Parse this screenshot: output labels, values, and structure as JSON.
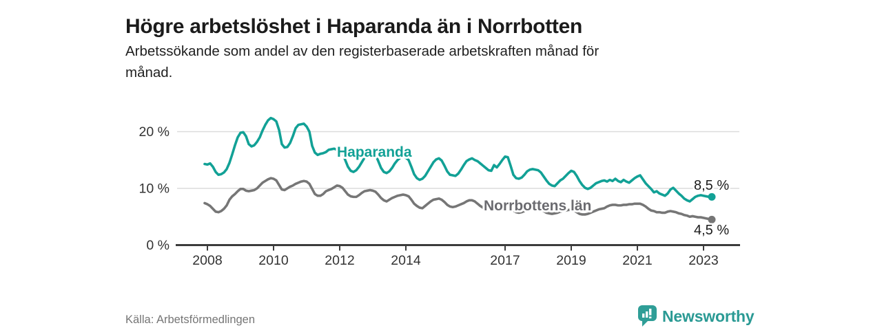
{
  "header": {
    "title": "Högre arbetslöshet i Haparanda än i Norrbotten",
    "subtitle_line1": "Arbetssökande som andel av den registerbaserade arbetskraften månad för",
    "subtitle_line2": "månad."
  },
  "footer": {
    "source": "Källa: Arbetsförmedlingen",
    "brand": "Newsworthy",
    "brand_color": "#2a9a94"
  },
  "colors": {
    "haparanda": "#12a196",
    "norrbotten": "#767676",
    "axis": "#3b3b3b",
    "grid": "#dcdcdc",
    "tick_label": "#333333"
  },
  "chart_data": {
    "type": "line",
    "title": "Högre arbetslöshet i Haparanda än i Norrbotten",
    "subtitle": "Arbetssökande som andel av den registerbaserade arbetskraften månad för månad.",
    "x_unit": "month",
    "x_start": "2008-01",
    "x_end": "2023-05",
    "grid": "horizontal",
    "ylim": [
      0,
      24
    ],
    "x_ticks": [
      2008,
      2010,
      2012,
      2014,
      2017,
      2019,
      2021,
      2023
    ],
    "y_ticks": [
      {
        "value": 0,
        "label": "0 %"
      },
      {
        "value": 10,
        "label": "10 %"
      },
      {
        "value": 20,
        "label": "20 %"
      }
    ],
    "series": [
      {
        "name": "Haparanda",
        "color": "#12a196",
        "end_label": "8,5 %",
        "end_value": 8.5,
        "values": [
          14.3,
          14.2,
          14.4,
          13.8,
          12.9,
          12.4,
          12.5,
          12.8,
          13.4,
          14.5,
          16.0,
          17.6,
          19.0,
          19.8,
          19.9,
          19.2,
          17.8,
          17.4,
          17.6,
          18.2,
          19.0,
          20.2,
          21.2,
          22.0,
          22.4,
          22.2,
          21.8,
          20.3,
          17.8,
          17.2,
          17.3,
          18.0,
          19.2,
          20.6,
          21.2,
          21.3,
          21.4,
          20.9,
          20.0,
          17.5,
          16.3,
          15.9,
          16.1,
          16.2,
          16.4,
          16.8,
          16.9,
          17.0,
          16.8,
          16.6,
          16.2,
          15.0,
          13.8,
          13.1,
          12.9,
          13.2,
          13.8,
          14.6,
          15.4,
          16.0,
          16.4,
          16.3,
          15.9,
          14.8,
          13.6,
          12.9,
          12.7,
          13.0,
          13.6,
          14.4,
          15.0,
          15.4,
          15.6,
          15.4,
          15.0,
          13.8,
          12.5,
          11.8,
          11.5,
          11.7,
          12.2,
          13.0,
          13.8,
          14.6,
          15.1,
          15.3,
          14.9,
          14.0,
          13.0,
          12.4,
          12.3,
          12.2,
          12.6,
          13.3,
          14.1,
          14.8,
          15.1,
          15.3,
          15.0,
          14.8,
          14.4,
          14.0,
          13.6,
          13.2,
          13.1,
          14.1,
          13.7,
          14.3,
          15.0,
          15.6,
          15.5,
          14.0,
          12.4,
          11.8,
          11.7,
          11.9,
          12.4,
          13.0,
          13.3,
          13.4,
          13.3,
          13.2,
          12.8,
          12.1,
          11.4,
          10.8,
          10.5,
          10.4,
          10.9,
          11.4,
          11.7,
          12.2,
          12.7,
          13.1,
          12.9,
          12.2,
          11.3,
          10.6,
          10.1,
          9.9,
          10.1,
          10.5,
          10.9,
          11.1,
          11.3,
          11.4,
          11.2,
          11.5,
          11.3,
          11.7,
          11.3,
          11.1,
          11.5,
          11.2,
          11.0,
          11.4,
          11.8,
          12.1,
          12.3,
          11.6,
          10.9,
          10.4,
          9.9,
          9.3,
          9.5,
          9.1,
          8.9,
          8.7,
          9.1,
          9.8,
          10.1,
          9.6,
          9.1,
          8.7,
          8.2,
          7.9,
          7.7,
          8.1,
          8.5,
          8.7,
          8.8,
          8.7,
          8.6,
          8.5,
          8.5
        ]
      },
      {
        "name": "Norrbottens län",
        "color": "#767676",
        "end_label": "4,5 %",
        "end_value": 4.5,
        "values": [
          7.4,
          7.2,
          6.9,
          6.4,
          5.9,
          5.8,
          6.0,
          6.4,
          7.0,
          8.0,
          8.6,
          9.0,
          9.5,
          9.9,
          9.9,
          9.6,
          9.5,
          9.6,
          9.7,
          10.0,
          10.5,
          11.0,
          11.3,
          11.6,
          11.8,
          11.7,
          11.4,
          10.6,
          9.8,
          9.7,
          10.0,
          10.3,
          10.5,
          10.8,
          11.0,
          11.2,
          11.3,
          11.2,
          10.8,
          9.9,
          9.0,
          8.7,
          8.7,
          9.0,
          9.5,
          9.7,
          9.9,
          10.2,
          10.5,
          10.4,
          10.1,
          9.5,
          8.9,
          8.6,
          8.5,
          8.5,
          8.8,
          9.2,
          9.5,
          9.6,
          9.7,
          9.6,
          9.4,
          8.9,
          8.3,
          7.9,
          7.7,
          8.0,
          8.3,
          8.5,
          8.7,
          8.8,
          8.9,
          8.8,
          8.6,
          8.0,
          7.3,
          6.9,
          6.6,
          6.5,
          6.9,
          7.3,
          7.7,
          8.0,
          8.1,
          8.2,
          8.0,
          7.6,
          7.1,
          6.8,
          6.7,
          6.8,
          7.0,
          7.2,
          7.4,
          7.7,
          7.9,
          7.9,
          7.7,
          7.3,
          6.9,
          6.6,
          6.4,
          6.5,
          6.7,
          6.9,
          7.0,
          7.1,
          7.2,
          7.2,
          7.0,
          6.6,
          6.1,
          5.8,
          5.7,
          5.8,
          6.0,
          6.2,
          6.4,
          6.5,
          6.6,
          6.5,
          6.3,
          6.0,
          5.7,
          5.6,
          5.5,
          5.6,
          5.7,
          5.9,
          6.0,
          6.1,
          6.2,
          6.2,
          6.1,
          5.8,
          5.5,
          5.4,
          5.4,
          5.5,
          5.7,
          5.9,
          6.1,
          6.3,
          6.4,
          6.5,
          6.8,
          7.0,
          7.1,
          7.1,
          7.0,
          7.0,
          7.1,
          7.1,
          7.2,
          7.2,
          7.3,
          7.3,
          7.3,
          7.1,
          6.8,
          6.4,
          6.1,
          6.0,
          5.8,
          5.8,
          5.7,
          5.7,
          5.9,
          6.0,
          5.9,
          5.8,
          5.6,
          5.5,
          5.3,
          5.2,
          5.0,
          5.1,
          5.0,
          4.9,
          4.9,
          4.8,
          4.7,
          4.6,
          4.5
        ]
      }
    ]
  }
}
